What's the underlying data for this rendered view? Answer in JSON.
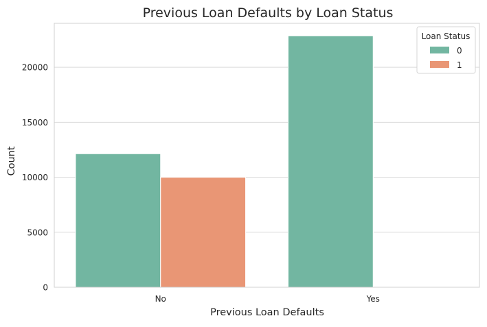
{
  "chart_data": {
    "type": "bar",
    "title": "Previous Loan Defaults by Loan Status",
    "xlabel": "Previous Loan Defaults",
    "ylabel": "Count",
    "categories": [
      "No",
      "Yes"
    ],
    "series": [
      {
        "name": "0",
        "values": [
          12140,
          22860
        ],
        "color": "#72b6a1"
      },
      {
        "name": "1",
        "values": [
          10000,
          0
        ],
        "color": "#e99675"
      }
    ],
    "ylim": [
      0,
      24000
    ],
    "yticks": [
      0,
      5000,
      10000,
      15000,
      20000
    ],
    "ytick_labels": [
      "0",
      "5000",
      "10000",
      "15000",
      "20000"
    ],
    "grid": true,
    "legend": {
      "title": "Loan Status",
      "placement": "top-right"
    }
  }
}
